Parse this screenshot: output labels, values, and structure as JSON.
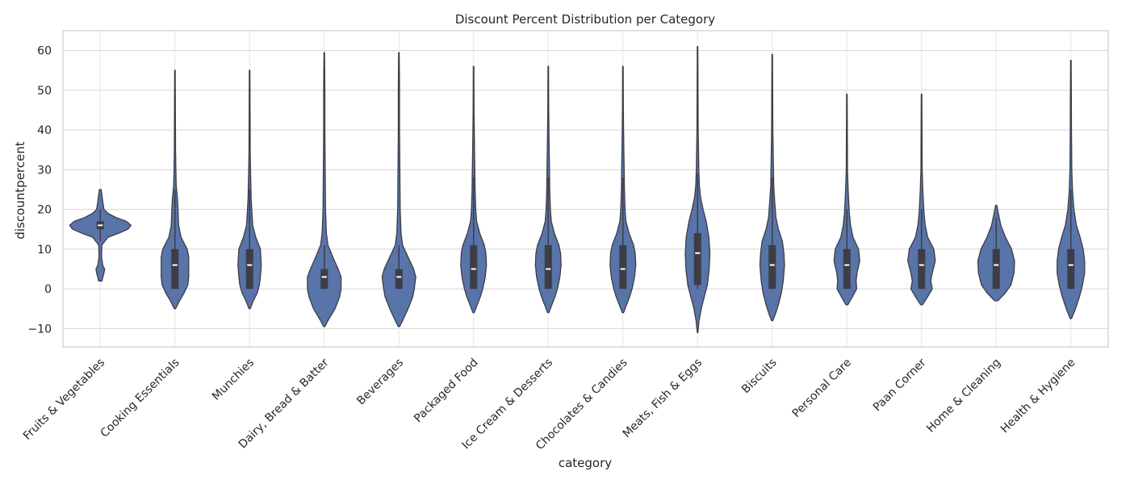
{
  "chart_data": {
    "type": "violin",
    "title": "Discount Percent Distribution per Category",
    "xlabel": "category",
    "ylabel": "discountpercent",
    "ylim": [
      -14.6,
      65
    ],
    "yticks": [
      -10,
      0,
      10,
      20,
      30,
      40,
      50,
      60
    ],
    "ytick_labels": [
      "−10",
      "0",
      "10",
      "20",
      "30",
      "40",
      "50",
      "60"
    ],
    "grid": true,
    "violin_color": "#5874a8",
    "categories": [
      "Fruits & Vegetables",
      "Cooking Essentials",
      "Munchies",
      "Dairy, Bread & Batter",
      "Beverages",
      "Packaged Food",
      "Ice Cream & Desserts",
      "Chocolates & Candies",
      "Meats, Fish & Eggs",
      "Biscuits",
      "Personal Care",
      "Paan Corner",
      "Home & Cleaning",
      "Health & Hygiene"
    ],
    "violins": [
      {
        "median": 16,
        "q1": 15,
        "q3": 17,
        "whisker_low": 12,
        "whisker_high": 20,
        "profile": [
          [
            2,
            0.05
          ],
          [
            4,
            0.12
          ],
          [
            5,
            0.14
          ],
          [
            6,
            0.08
          ],
          [
            8,
            0.04
          ],
          [
            11,
            0.05
          ],
          [
            13,
            0.25
          ],
          [
            14,
            0.6
          ],
          [
            15,
            0.9
          ],
          [
            16,
            1.0
          ],
          [
            17,
            0.85
          ],
          [
            18,
            0.5
          ],
          [
            19,
            0.25
          ],
          [
            20,
            0.12
          ],
          [
            22,
            0.08
          ],
          [
            25,
            0.03
          ]
        ]
      },
      {
        "median": 6,
        "q1": 0,
        "q3": 10,
        "whisker_low": 0,
        "whisker_high": 25,
        "profile": [
          [
            -5,
            0.02
          ],
          [
            -3,
            0.15
          ],
          [
            -1,
            0.3
          ],
          [
            1,
            0.42
          ],
          [
            3,
            0.45
          ],
          [
            5,
            0.45
          ],
          [
            8,
            0.45
          ],
          [
            10,
            0.4
          ],
          [
            13,
            0.2
          ],
          [
            16,
            0.12
          ],
          [
            20,
            0.1
          ],
          [
            23,
            0.08
          ],
          [
            26,
            0.04
          ],
          [
            30,
            0.03
          ],
          [
            35,
            0.02
          ],
          [
            45,
            0.015
          ],
          [
            55,
            0.01
          ]
        ]
      },
      {
        "median": 6,
        "q1": 0,
        "q3": 10,
        "whisker_low": 0,
        "whisker_high": 25,
        "profile": [
          [
            -5,
            0.02
          ],
          [
            -3,
            0.12
          ],
          [
            -1,
            0.25
          ],
          [
            1,
            0.32
          ],
          [
            3,
            0.35
          ],
          [
            6,
            0.38
          ],
          [
            10,
            0.35
          ],
          [
            13,
            0.2
          ],
          [
            16,
            0.1
          ],
          [
            20,
            0.07
          ],
          [
            23,
            0.05
          ],
          [
            26,
            0.04
          ],
          [
            30,
            0.03
          ],
          [
            35,
            0.02
          ],
          [
            45,
            0.015
          ],
          [
            55,
            0.01
          ]
        ]
      },
      {
        "median": 3,
        "q1": 0,
        "q3": 5,
        "whisker_low": 0,
        "whisker_high": 11,
        "profile": [
          [
            -9.5,
            0.02
          ],
          [
            -8,
            0.12
          ],
          [
            -5,
            0.35
          ],
          [
            -2,
            0.5
          ],
          [
            0,
            0.55
          ],
          [
            3,
            0.55
          ],
          [
            5,
            0.45
          ],
          [
            8,
            0.28
          ],
          [
            11,
            0.12
          ],
          [
            14,
            0.07
          ],
          [
            20,
            0.04
          ],
          [
            30,
            0.03
          ],
          [
            40,
            0.02
          ],
          [
            50,
            0.02
          ],
          [
            55,
            0.015
          ],
          [
            59.5,
            0.01
          ]
        ]
      },
      {
        "median": 3,
        "q1": 0,
        "q3": 5,
        "whisker_low": 0,
        "whisker_high": 11,
        "profile": [
          [
            -9.5,
            0.02
          ],
          [
            -8,
            0.12
          ],
          [
            -5,
            0.3
          ],
          [
            -2,
            0.45
          ],
          [
            0,
            0.5
          ],
          [
            3,
            0.55
          ],
          [
            5,
            0.48
          ],
          [
            8,
            0.3
          ],
          [
            11,
            0.12
          ],
          [
            14,
            0.07
          ],
          [
            20,
            0.04
          ],
          [
            30,
            0.03
          ],
          [
            40,
            0.02
          ],
          [
            50,
            0.02
          ],
          [
            55,
            0.015
          ],
          [
            59.5,
            0.01
          ]
        ]
      },
      {
        "median": 5,
        "q1": 0,
        "q3": 11,
        "whisker_low": 0,
        "whisker_high": 28,
        "profile": [
          [
            -6,
            0.02
          ],
          [
            -4,
            0.12
          ],
          [
            -2,
            0.22
          ],
          [
            0,
            0.3
          ],
          [
            3,
            0.38
          ],
          [
            6,
            0.42
          ],
          [
            9,
            0.4
          ],
          [
            11,
            0.35
          ],
          [
            14,
            0.2
          ],
          [
            17,
            0.1
          ],
          [
            20,
            0.07
          ],
          [
            25,
            0.05
          ],
          [
            30,
            0.04
          ],
          [
            35,
            0.03
          ],
          [
            45,
            0.015
          ],
          [
            56,
            0.01
          ]
        ]
      },
      {
        "median": 5,
        "q1": 0,
        "q3": 11,
        "whisker_low": 0,
        "whisker_high": 28,
        "profile": [
          [
            -6,
            0.02
          ],
          [
            -4,
            0.12
          ],
          [
            -2,
            0.22
          ],
          [
            0,
            0.3
          ],
          [
            3,
            0.38
          ],
          [
            6,
            0.42
          ],
          [
            9,
            0.4
          ],
          [
            11,
            0.35
          ],
          [
            14,
            0.2
          ],
          [
            17,
            0.1
          ],
          [
            20,
            0.07
          ],
          [
            25,
            0.05
          ],
          [
            30,
            0.04
          ],
          [
            35,
            0.03
          ],
          [
            45,
            0.015
          ],
          [
            56,
            0.01
          ]
        ]
      },
      {
        "median": 5,
        "q1": 0,
        "q3": 11,
        "whisker_low": 0,
        "whisker_high": 28,
        "profile": [
          [
            -6,
            0.02
          ],
          [
            -4,
            0.12
          ],
          [
            -2,
            0.22
          ],
          [
            0,
            0.3
          ],
          [
            3,
            0.38
          ],
          [
            6,
            0.42
          ],
          [
            9,
            0.4
          ],
          [
            11,
            0.35
          ],
          [
            14,
            0.2
          ],
          [
            17,
            0.1
          ],
          [
            20,
            0.07
          ],
          [
            25,
            0.05
          ],
          [
            30,
            0.04
          ],
          [
            35,
            0.03
          ],
          [
            45,
            0.015
          ],
          [
            56,
            0.01
          ]
        ]
      },
      {
        "median": 9,
        "q1": 1,
        "q3": 14,
        "whisker_low": 0,
        "whisker_high": 29,
        "profile": [
          [
            -11,
            0.01
          ],
          [
            -8,
            0.05
          ],
          [
            -5,
            0.12
          ],
          [
            -2,
            0.22
          ],
          [
            1,
            0.32
          ],
          [
            5,
            0.38
          ],
          [
            9,
            0.4
          ],
          [
            13,
            0.37
          ],
          [
            17,
            0.28
          ],
          [
            20,
            0.18
          ],
          [
            23,
            0.1
          ],
          [
            26,
            0.06
          ],
          [
            30,
            0.04
          ],
          [
            40,
            0.02
          ],
          [
            50,
            0.015
          ],
          [
            61,
            0.01
          ]
        ]
      },
      {
        "median": 6,
        "q1": 0,
        "q3": 11,
        "whisker_low": 0,
        "whisker_high": 28,
        "profile": [
          [
            -8,
            0.02
          ],
          [
            -6,
            0.12
          ],
          [
            -4,
            0.2
          ],
          [
            -1,
            0.3
          ],
          [
            2,
            0.36
          ],
          [
            6,
            0.4
          ],
          [
            9,
            0.38
          ],
          [
            12,
            0.33
          ],
          [
            15,
            0.2
          ],
          [
            18,
            0.12
          ],
          [
            22,
            0.08
          ],
          [
            26,
            0.05
          ],
          [
            30,
            0.04
          ],
          [
            40,
            0.02
          ],
          [
            50,
            0.015
          ],
          [
            59,
            0.01
          ]
        ]
      },
      {
        "median": 6,
        "q1": 0,
        "q3": 10,
        "whisker_low": 0,
        "whisker_high": 20,
        "profile": [
          [
            -4,
            0.03
          ],
          [
            -2,
            0.18
          ],
          [
            0,
            0.32
          ],
          [
            2,
            0.3
          ],
          [
            4,
            0.33
          ],
          [
            7,
            0.42
          ],
          [
            10,
            0.38
          ],
          [
            13,
            0.2
          ],
          [
            16,
            0.12
          ],
          [
            19,
            0.08
          ],
          [
            22,
            0.06
          ],
          [
            25,
            0.04
          ],
          [
            30,
            0.02
          ],
          [
            40,
            0.015
          ],
          [
            49,
            0.01
          ]
        ]
      },
      {
        "median": 6,
        "q1": 0,
        "q3": 10,
        "whisker_low": 0,
        "whisker_high": 20,
        "profile": [
          [
            -4,
            0.03
          ],
          [
            -2,
            0.2
          ],
          [
            0,
            0.35
          ],
          [
            2,
            0.3
          ],
          [
            4,
            0.35
          ],
          [
            7,
            0.45
          ],
          [
            10,
            0.4
          ],
          [
            13,
            0.2
          ],
          [
            16,
            0.12
          ],
          [
            19,
            0.08
          ],
          [
            22,
            0.06
          ],
          [
            25,
            0.04
          ],
          [
            30,
            0.02
          ],
          [
            40,
            0.015
          ],
          [
            49,
            0.01
          ]
        ]
      },
      {
        "median": 6,
        "q1": 0,
        "q3": 10,
        "whisker_low": 0,
        "whisker_high": 18,
        "profile": [
          [
            -3,
            0.05
          ],
          [
            -1,
            0.3
          ],
          [
            1,
            0.48
          ],
          [
            4,
            0.58
          ],
          [
            7,
            0.6
          ],
          [
            10,
            0.5
          ],
          [
            13,
            0.3
          ],
          [
            16,
            0.15
          ],
          [
            19,
            0.07
          ],
          [
            21,
            0.02
          ]
        ]
      },
      {
        "median": 6,
        "q1": 0,
        "q3": 10,
        "whisker_low": 0,
        "whisker_high": 25,
        "profile": [
          [
            -7.5,
            0.02
          ],
          [
            -5,
            0.15
          ],
          [
            -2,
            0.28
          ],
          [
            1,
            0.38
          ],
          [
            4,
            0.45
          ],
          [
            7,
            0.45
          ],
          [
            10,
            0.4
          ],
          [
            13,
            0.3
          ],
          [
            16,
            0.18
          ],
          [
            20,
            0.1
          ],
          [
            25,
            0.05
          ],
          [
            30,
            0.03
          ],
          [
            40,
            0.02
          ],
          [
            50,
            0.015
          ],
          [
            57.5,
            0.01
          ]
        ]
      }
    ]
  }
}
